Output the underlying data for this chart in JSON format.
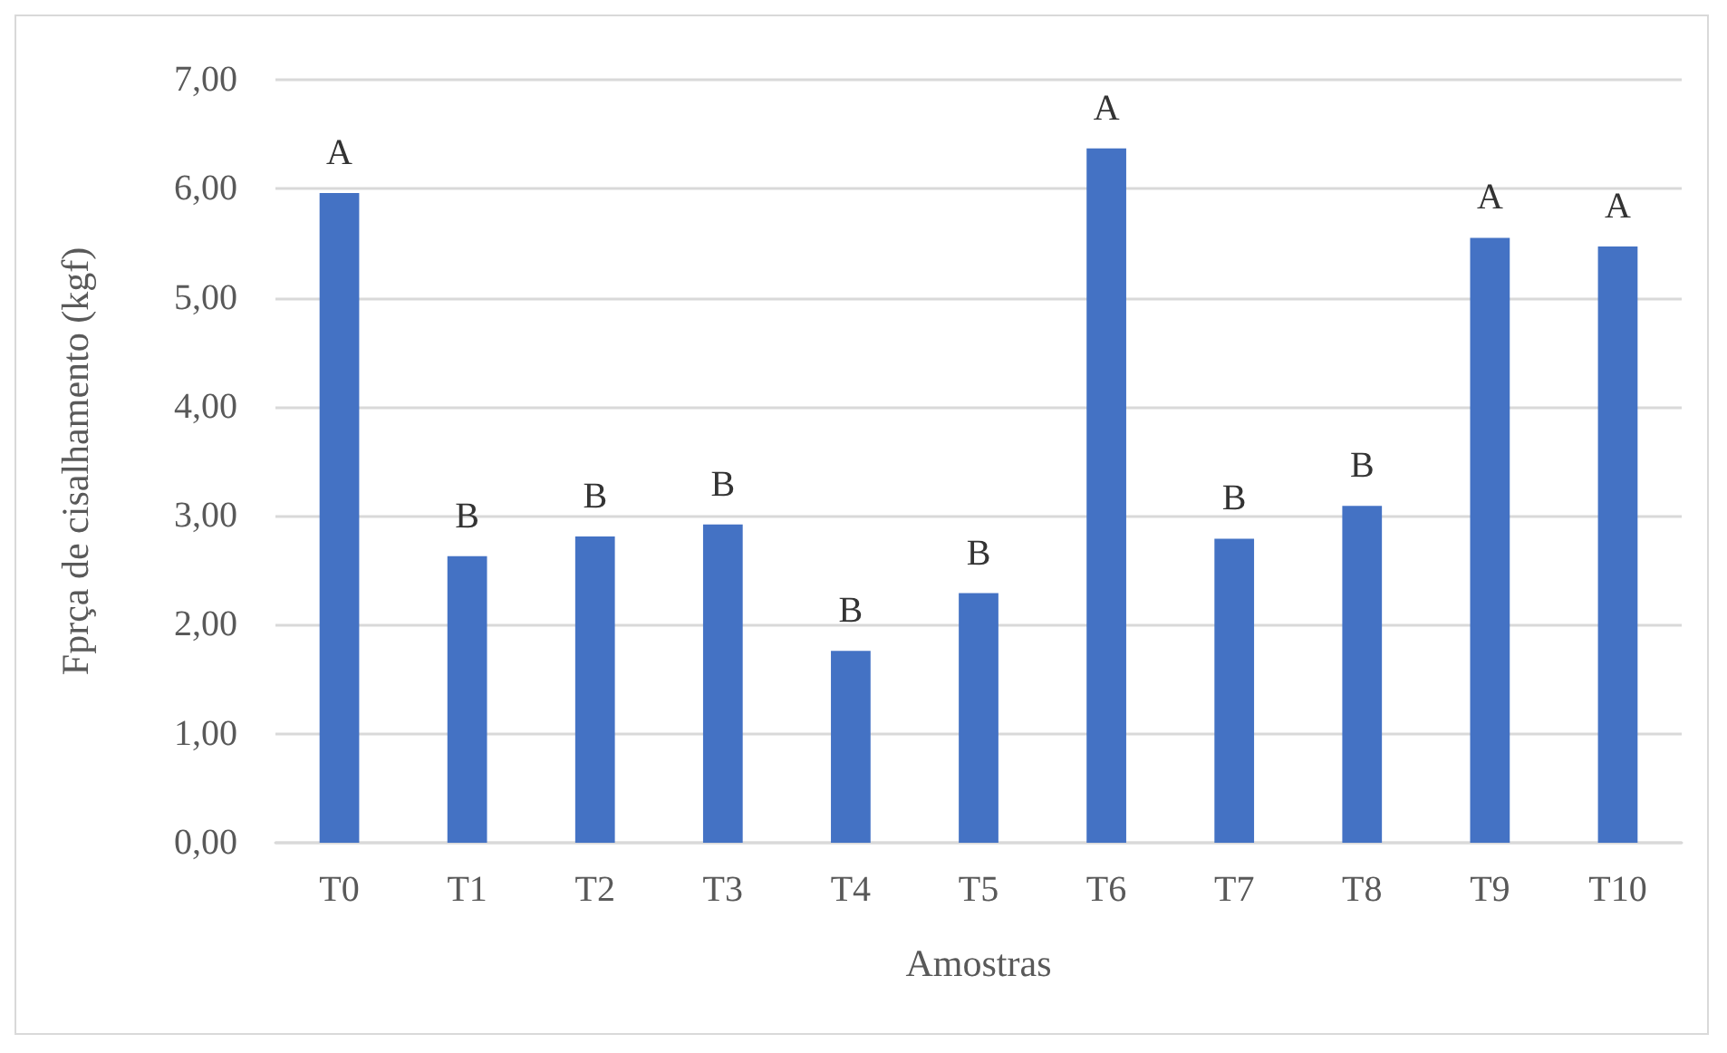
{
  "chart_data": {
    "type": "bar",
    "xlabel": "Amostras",
    "ylabel": "Fprça de cisalhamento (kgf)",
    "categories": [
      "T0",
      "T1",
      "T2",
      "T3",
      "T4",
      "T5",
      "T6",
      "T7",
      "T8",
      "T9",
      "T10"
    ],
    "values": [
      5.96,
      2.63,
      2.81,
      2.92,
      1.76,
      2.29,
      6.37,
      2.79,
      3.09,
      5.55,
      5.47
    ],
    "color": "#4472c4",
    "ylim": [
      0,
      7
    ],
    "yticks": [
      {
        "value": 0,
        "label": "0,00"
      },
      {
        "value": 1,
        "label": "1,00"
      },
      {
        "value": 2,
        "label": "2,00"
      },
      {
        "value": 3,
        "label": "3,00"
      },
      {
        "value": 4,
        "label": "4,00"
      },
      {
        "value": 5,
        "label": "5,00"
      },
      {
        "value": 6,
        "label": "6,00"
      },
      {
        "value": 7,
        "label": "7,00"
      }
    ],
    "grid": "y",
    "annotations": [
      {
        "text": "A",
        "x": "T0",
        "y": 5.96
      },
      {
        "text": "B",
        "x": "T1",
        "y": 2.63
      },
      {
        "text": "B",
        "x": "T2",
        "y": 2.81
      },
      {
        "text": "B",
        "x": "T3",
        "y": 2.92
      },
      {
        "text": "B",
        "x": "T4",
        "y": 1.76
      },
      {
        "text": "B",
        "x": "T5",
        "y": 2.29
      },
      {
        "text": "A",
        "x": "T6",
        "y": 6.37
      },
      {
        "text": "B",
        "x": "T7",
        "y": 2.79
      },
      {
        "text": "B",
        "x": "T8",
        "y": 3.09
      },
      {
        "text": "A",
        "x": "T9",
        "y": 5.55
      },
      {
        "text": "A",
        "x": "T10",
        "y": 5.47
      }
    ]
  }
}
